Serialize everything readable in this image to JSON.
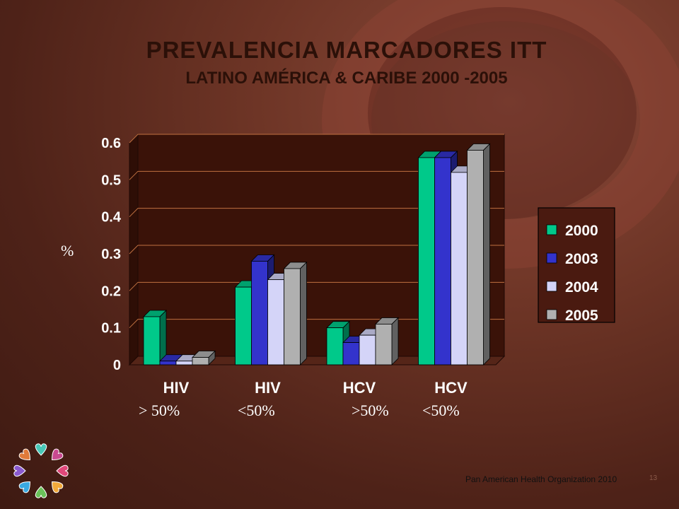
{
  "header": {
    "title": "PREVALENCIA MARCADORES ITT",
    "subtitle": "LATINO AMÉRICA & CARIBE 2000 -2005"
  },
  "y_unit_label": "%",
  "category_sublabels": [
    "> 50%",
    "<50%",
    ">50%",
    "<50%"
  ],
  "footer": {
    "organization": "Pan American Health Organization 2010",
    "page_number": "13"
  },
  "colors": {
    "2000": "#00c98a",
    "2003": "#3333cc",
    "2004": "#d4d4f8",
    "2005": "#b0b0b0",
    "legend_bg": "#4a1a10",
    "text_light": "#ffffff"
  },
  "chart_data": {
    "type": "bar",
    "style": "3d-clustered",
    "categories": [
      "HIV",
      "HIV",
      "HCV",
      "HCV"
    ],
    "series": [
      {
        "name": "2000",
        "values": [
          0.13,
          0.21,
          0.1,
          0.56
        ]
      },
      {
        "name": "2003",
        "values": [
          0.01,
          0.28,
          0.06,
          0.56
        ]
      },
      {
        "name": "2004",
        "values": [
          0.01,
          0.23,
          0.08,
          0.52
        ]
      },
      {
        "name": "2005",
        "values": [
          0.02,
          0.26,
          0.11,
          0.58
        ]
      }
    ],
    "ylim": [
      0,
      0.6
    ],
    "yticks": [
      "0",
      "0.1",
      "0.2",
      "0.3",
      "0.4",
      "0.5",
      "0.6"
    ],
    "ytick_values": [
      0,
      0.1,
      0.2,
      0.3,
      0.4,
      0.5,
      0.6
    ],
    "grid": true,
    "legend_position": "right"
  }
}
